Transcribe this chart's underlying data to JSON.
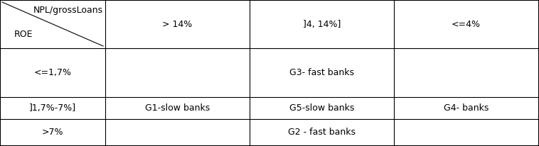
{
  "figsize": [
    7.58,
    2.06
  ],
  "dpi": 100,
  "bg_color": "#ffffff",
  "line_color": "#000000",
  "line_width": 0.8,
  "font_size": 9,
  "col_edges": [
    0,
    148,
    351,
    554,
    757
  ],
  "row_edges": [
    0,
    68,
    137,
    168,
    205
  ],
  "header": {
    "npl": "NPL/grossLoans",
    "roe": "ROE",
    "col2": "> 14%",
    "col3": "]4, 14%]",
    "col4": "<=4%"
  },
  "cells": [
    [
      "<=1,7%",
      "",
      "G3- fast banks",
      ""
    ],
    [
      "]1,7%-7%]",
      "G1-slow banks",
      "G5-slow banks",
      "G4- banks"
    ],
    [
      ">7%",
      "",
      "G2 - fast banks",
      ""
    ]
  ]
}
